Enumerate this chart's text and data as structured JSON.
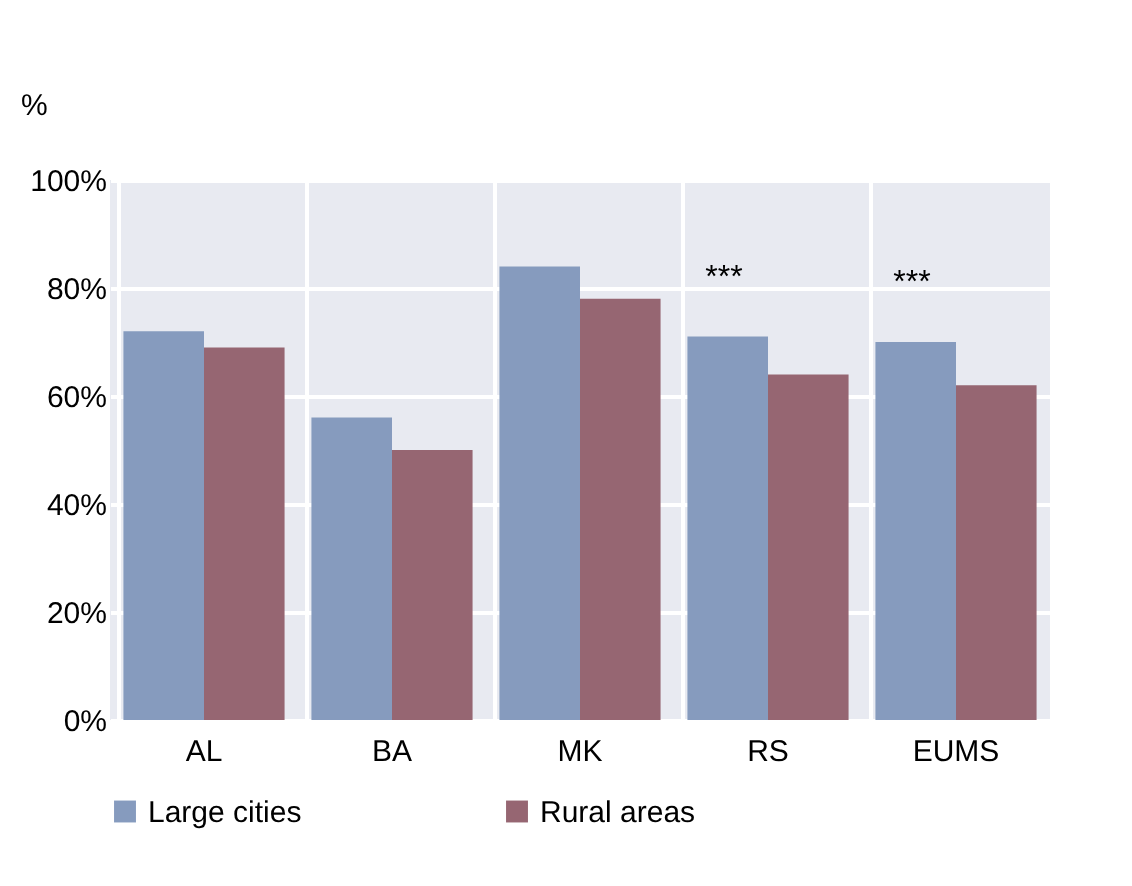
{
  "chart_data": {
    "type": "bar",
    "ylabel": "%",
    "categories": [
      "AL",
      "BA",
      "MK",
      "RS",
      "EUMS"
    ],
    "series": [
      {
        "name": "Large cities",
        "color": "#869bbe",
        "values": [
          72,
          56,
          84,
          71,
          70
        ]
      },
      {
        "name": "Rural areas",
        "color": "#966672",
        "values": [
          69,
          50,
          78,
          64,
          62
        ]
      }
    ],
    "ylim": [
      0,
      100
    ],
    "yticks": [
      {
        "value": 0,
        "label": "0%"
      },
      {
        "value": 20,
        "label": "20%"
      },
      {
        "value": 40,
        "label": "40%"
      },
      {
        "value": 60,
        "label": "60%"
      },
      {
        "value": 80,
        "label": "80%"
      },
      {
        "value": 100,
        "label": "100%"
      }
    ],
    "grid": true,
    "legend": "bottom",
    "annotations": [
      {
        "text": "***",
        "x": "RS",
        "y": 71
      },
      {
        "text": "***",
        "x": "EUMS",
        "y": 70
      }
    ]
  }
}
